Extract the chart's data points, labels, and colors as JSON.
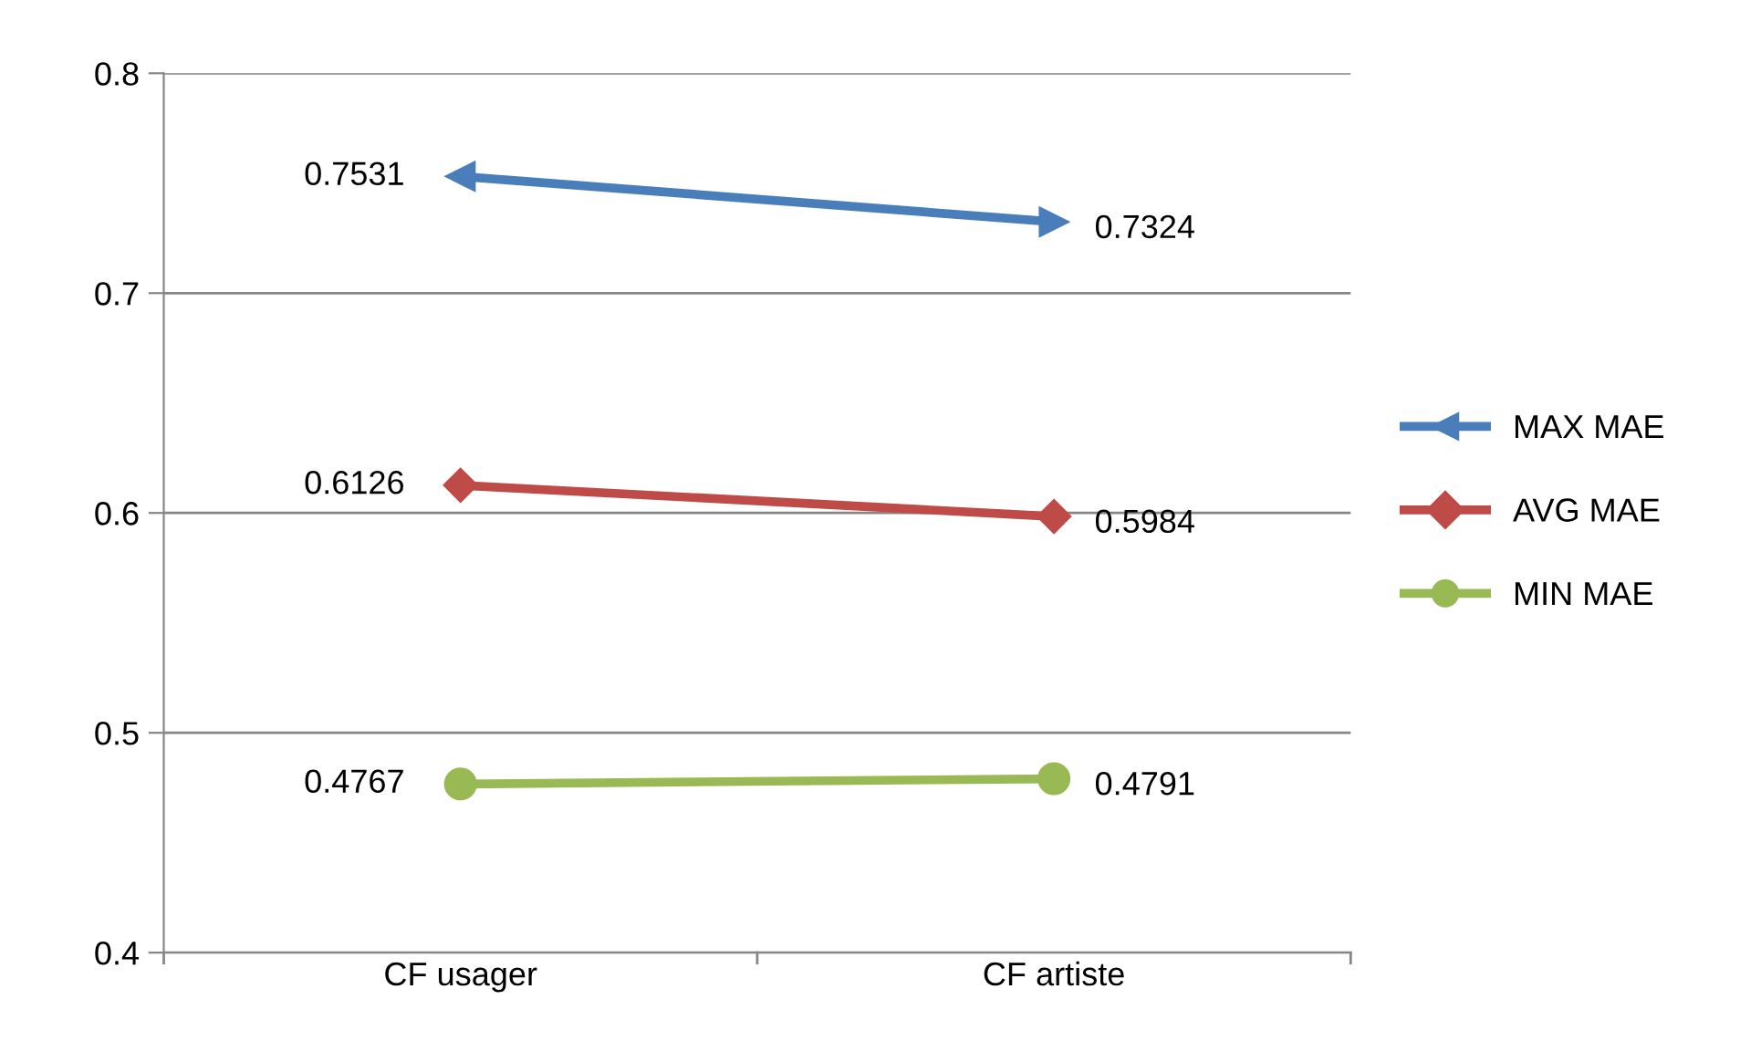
{
  "chart_data": {
    "type": "line",
    "categories": [
      "CF usager",
      "CF artiste"
    ],
    "series": [
      {
        "name": "MAX MAE",
        "color": "#4a7ebb",
        "values": [
          0.7531,
          0.7324
        ],
        "marker": "triangle"
      },
      {
        "name": "AVG MAE",
        "color": "#be4b48",
        "values": [
          0.6126,
          0.5984
        ],
        "marker": "diamond"
      },
      {
        "name": "MIN MAE",
        "color": "#98b954",
        "values": [
          0.4767,
          0.4791
        ],
        "marker": "circle"
      }
    ],
    "ylim": [
      0.4,
      0.8
    ],
    "yticks": [
      {
        "value": 0.4,
        "label": "0.4"
      },
      {
        "value": 0.5,
        "label": "0.5"
      },
      {
        "value": 0.6,
        "label": "0.6"
      },
      {
        "value": 0.7,
        "label": "0.7"
      },
      {
        "value": 0.8,
        "label": "0.8"
      }
    ],
    "grid": "y",
    "legend": "right",
    "data_labels": true
  }
}
